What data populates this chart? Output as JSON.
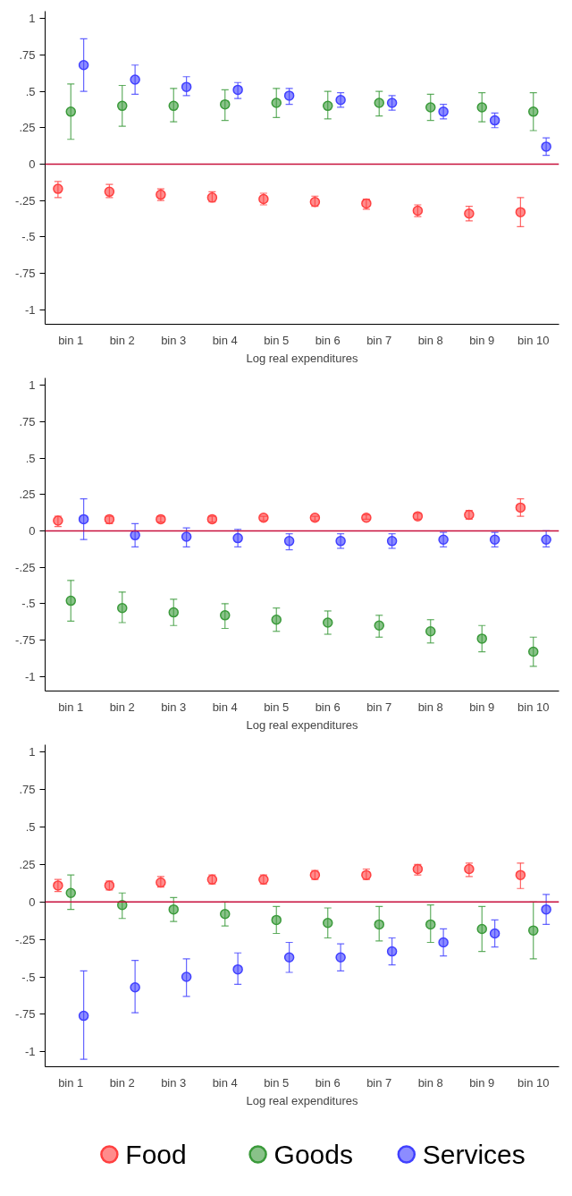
{
  "chart_data": [
    {
      "type": "scatter",
      "xlabel": "Log real expenditures",
      "categories": [
        "bin 1",
        "bin 2",
        "bin 3",
        "bin 4",
        "bin 5",
        "bin 6",
        "bin 7",
        "bin 8",
        "bin 9",
        "bin 10"
      ],
      "ylim": [
        -1.1,
        1.05
      ],
      "yticks": [
        -1,
        {
          "value": -0.75,
          "label": "-.75"
        },
        {
          "value": -0.5,
          "label": "-.5"
        },
        {
          "value": -0.25,
          "label": "-.25"
        },
        0,
        {
          "value": 0.25,
          "label": ".25"
        },
        {
          "value": 0.5,
          "label": ".5"
        },
        {
          "value": 0.75,
          "label": ".75"
        },
        1
      ],
      "grid": false,
      "marker": "circle",
      "legend": false,
      "ref_lines": [
        {
          "axis": "y",
          "value": 0,
          "color": "#c8103c"
        }
      ],
      "series": [
        {
          "color": "#ff4040",
          "values": [
            -0.17,
            -0.19,
            -0.21,
            -0.23,
            -0.24,
            -0.26,
            -0.27,
            -0.32,
            -0.34,
            -0.33
          ],
          "errors": [
            [
              -0.23,
              -0.12
            ],
            [
              -0.23,
              -0.14
            ],
            [
              -0.25,
              -0.17
            ],
            [
              -0.26,
              -0.19
            ],
            [
              -0.28,
              -0.2
            ],
            [
              -0.29,
              -0.22
            ],
            [
              -0.31,
              -0.24
            ],
            [
              -0.36,
              -0.28
            ],
            [
              -0.39,
              -0.29
            ],
            [
              -0.43,
              -0.23
            ]
          ]
        },
        {
          "color": "#3a9a3a",
          "values": [
            0.36,
            0.4,
            0.4,
            0.41,
            0.42,
            0.4,
            0.42,
            0.39,
            0.39,
            0.36
          ],
          "errors": [
            [
              0.17,
              0.55
            ],
            [
              0.26,
              0.54
            ],
            [
              0.29,
              0.52
            ],
            [
              0.3,
              0.51
            ],
            [
              0.32,
              0.52
            ],
            [
              0.31,
              0.5
            ],
            [
              0.33,
              0.5
            ],
            [
              0.3,
              0.48
            ],
            [
              0.29,
              0.49
            ],
            [
              0.23,
              0.49
            ]
          ]
        },
        {
          "color": "#4040ff",
          "values": [
            0.68,
            0.58,
            0.53,
            0.51,
            0.47,
            0.44,
            0.42,
            0.36,
            0.3,
            0.12
          ],
          "errors": [
            [
              0.5,
              0.86
            ],
            [
              0.48,
              0.68
            ],
            [
              0.47,
              0.6
            ],
            [
              0.45,
              0.56
            ],
            [
              0.41,
              0.52
            ],
            [
              0.39,
              0.49
            ],
            [
              0.37,
              0.47
            ],
            [
              0.31,
              0.41
            ],
            [
              0.25,
              0.35
            ],
            [
              0.06,
              0.18
            ]
          ]
        }
      ]
    },
    {
      "type": "scatter",
      "xlabel": "Log real expenditures",
      "categories": [
        "bin 1",
        "bin 2",
        "bin 3",
        "bin 4",
        "bin 5",
        "bin 6",
        "bin 7",
        "bin 8",
        "bin 9",
        "bin 10"
      ],
      "ylim": [
        -1.1,
        1.05
      ],
      "yticks": [
        -1,
        {
          "value": -0.75,
          "label": "-.75"
        },
        {
          "value": -0.5,
          "label": "-.5"
        },
        {
          "value": -0.25,
          "label": "-.25"
        },
        0,
        {
          "value": 0.25,
          "label": ".25"
        },
        {
          "value": 0.5,
          "label": ".5"
        },
        {
          "value": 0.75,
          "label": ".75"
        },
        1
      ],
      "grid": false,
      "marker": "circle",
      "legend": false,
      "ref_lines": [
        {
          "axis": "y",
          "value": 0,
          "color": "#c8103c"
        }
      ],
      "series": [
        {
          "color": "#ff4040",
          "values": [
            0.07,
            0.08,
            0.08,
            0.08,
            0.09,
            0.09,
            0.09,
            0.1,
            0.11,
            0.16
          ],
          "errors": [
            [
              0.03,
              0.1
            ],
            [
              0.05,
              0.1
            ],
            [
              0.06,
              0.1
            ],
            [
              0.06,
              0.1
            ],
            [
              0.07,
              0.1
            ],
            [
              0.07,
              0.1
            ],
            [
              0.08,
              0.11
            ],
            [
              0.08,
              0.12
            ],
            [
              0.08,
              0.14
            ],
            [
              0.1,
              0.22
            ]
          ]
        },
        {
          "color": "#3a9a3a",
          "values": [
            -0.48,
            -0.53,
            -0.56,
            -0.58,
            -0.61,
            -0.63,
            -0.65,
            -0.69,
            -0.74,
            -0.83
          ],
          "errors": [
            [
              -0.62,
              -0.34
            ],
            [
              -0.63,
              -0.42
            ],
            [
              -0.65,
              -0.47
            ],
            [
              -0.67,
              -0.5
            ],
            [
              -0.69,
              -0.53
            ],
            [
              -0.71,
              -0.55
            ],
            [
              -0.73,
              -0.58
            ],
            [
              -0.77,
              -0.61
            ],
            [
              -0.83,
              -0.65
            ],
            [
              -0.93,
              -0.73
            ]
          ]
        },
        {
          "color": "#4040ff",
          "values": [
            0.08,
            -0.03,
            -0.04,
            -0.05,
            -0.07,
            -0.07,
            -0.07,
            -0.06,
            -0.06,
            -0.06
          ],
          "errors": [
            [
              -0.06,
              0.22
            ],
            [
              -0.11,
              0.05
            ],
            [
              -0.11,
              0.02
            ],
            [
              -0.11,
              0.01
            ],
            [
              -0.13,
              -0.02
            ],
            [
              -0.12,
              -0.02
            ],
            [
              -0.12,
              -0.02
            ],
            [
              -0.11,
              -0.01
            ],
            [
              -0.11,
              -0.01
            ],
            [
              -0.11,
              0.0
            ]
          ]
        }
      ]
    },
    {
      "type": "scatter",
      "xlabel": "Log real expenditures",
      "categories": [
        "bin 1",
        "bin 2",
        "bin 3",
        "bin 4",
        "bin 5",
        "bin 6",
        "bin 7",
        "bin 8",
        "bin 9",
        "bin 10"
      ],
      "ylim": [
        -1.1,
        1.05
      ],
      "yticks": [
        -1,
        {
          "value": -0.75,
          "label": "-.75"
        },
        {
          "value": -0.5,
          "label": "-.5"
        },
        {
          "value": -0.25,
          "label": "-.25"
        },
        0,
        {
          "value": 0.25,
          "label": ".25"
        },
        {
          "value": 0.5,
          "label": ".5"
        },
        {
          "value": 0.75,
          "label": ".75"
        },
        1
      ],
      "grid": false,
      "marker": "circle",
      "legend": "bottom",
      "ref_lines": [
        {
          "axis": "y",
          "value": 0,
          "color": "#c8103c"
        }
      ],
      "series": [
        {
          "name": "Food",
          "color": "#ff4040",
          "values": [
            0.11,
            0.11,
            0.13,
            0.15,
            0.15,
            0.18,
            0.18,
            0.22,
            0.22,
            0.18
          ],
          "errors": [
            [
              0.07,
              0.15
            ],
            [
              0.08,
              0.14
            ],
            [
              0.1,
              0.17
            ],
            [
              0.12,
              0.18
            ],
            [
              0.12,
              0.18
            ],
            [
              0.15,
              0.21
            ],
            [
              0.15,
              0.22
            ],
            [
              0.18,
              0.25
            ],
            [
              0.17,
              0.26
            ],
            [
              0.09,
              0.26
            ]
          ]
        },
        {
          "name": "Goods",
          "color": "#3a9a3a",
          "values": [
            0.06,
            -0.02,
            -0.05,
            -0.08,
            -0.12,
            -0.14,
            -0.15,
            -0.15,
            -0.18,
            -0.19
          ],
          "errors": [
            [
              -0.05,
              0.18
            ],
            [
              -0.11,
              0.06
            ],
            [
              -0.13,
              0.03
            ],
            [
              -0.16,
              0.0
            ],
            [
              -0.21,
              -0.03
            ],
            [
              -0.24,
              -0.04
            ],
            [
              -0.26,
              -0.03
            ],
            [
              -0.27,
              -0.02
            ],
            [
              -0.33,
              -0.03
            ],
            [
              -0.38,
              0.0
            ]
          ]
        },
        {
          "name": "Services",
          "color": "#4040ff",
          "values": [
            -0.76,
            -0.57,
            -0.5,
            -0.45,
            -0.37,
            -0.37,
            -0.33,
            -0.27,
            -0.21,
            -0.05
          ],
          "errors": [
            [
              -1.05,
              -0.46
            ],
            [
              -0.74,
              -0.39
            ],
            [
              -0.63,
              -0.38
            ],
            [
              -0.55,
              -0.34
            ],
            [
              -0.47,
              -0.27
            ],
            [
              -0.46,
              -0.28
            ],
            [
              -0.42,
              -0.24
            ],
            [
              -0.36,
              -0.18
            ],
            [
              -0.3,
              -0.12
            ],
            [
              -0.15,
              0.05
            ]
          ]
        }
      ]
    }
  ]
}
